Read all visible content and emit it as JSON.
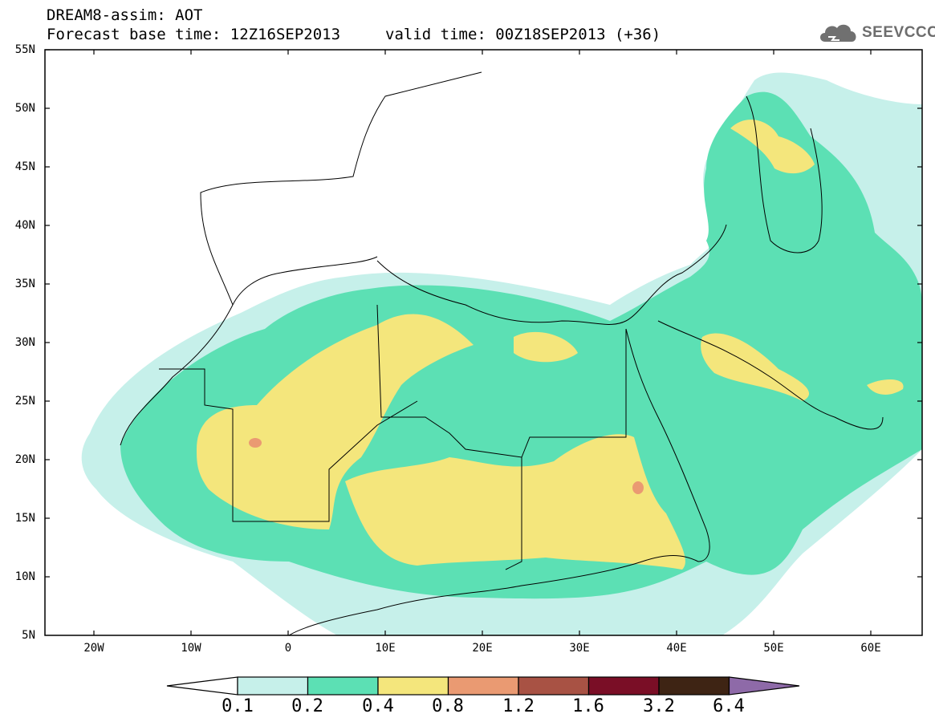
{
  "header": {
    "title_line1": "DREAM8-assim: AOT",
    "title_line2": "Forecast base time: 12Z16SEP2013",
    "valid_time": "valid time: 00Z18SEP2013 (+36)",
    "logo_text": "SEEVCCC"
  },
  "axes": {
    "lat_labels": [
      "55N",
      "50N",
      "45N",
      "40N",
      "35N",
      "30N",
      "25N",
      "20N",
      "15N",
      "10N",
      "5N"
    ],
    "lon_labels": [
      "20W",
      "10W",
      "0",
      "10E",
      "20E",
      "30E",
      "40E",
      "50E",
      "60E"
    ],
    "lat_range": [
      5,
      55
    ],
    "lon_range": [
      -25,
      65
    ]
  },
  "colorbar": {
    "labels": [
      "0.1",
      "0.2",
      "0.4",
      "0.8",
      "1.2",
      "1.6",
      "3.2",
      "6.4"
    ],
    "colors": [
      "#c6f0ea",
      "#5ce0b4",
      "#f4e67c",
      "#ea9a72",
      "#a85244",
      "#7a0e26",
      "#3e2414",
      "#8e6aa8"
    ]
  },
  "map_colors": {
    "c01": "#c6f0ea",
    "c02": "#5ce0b4",
    "c04": "#f4e67c",
    "c08": "#ea9a72"
  }
}
